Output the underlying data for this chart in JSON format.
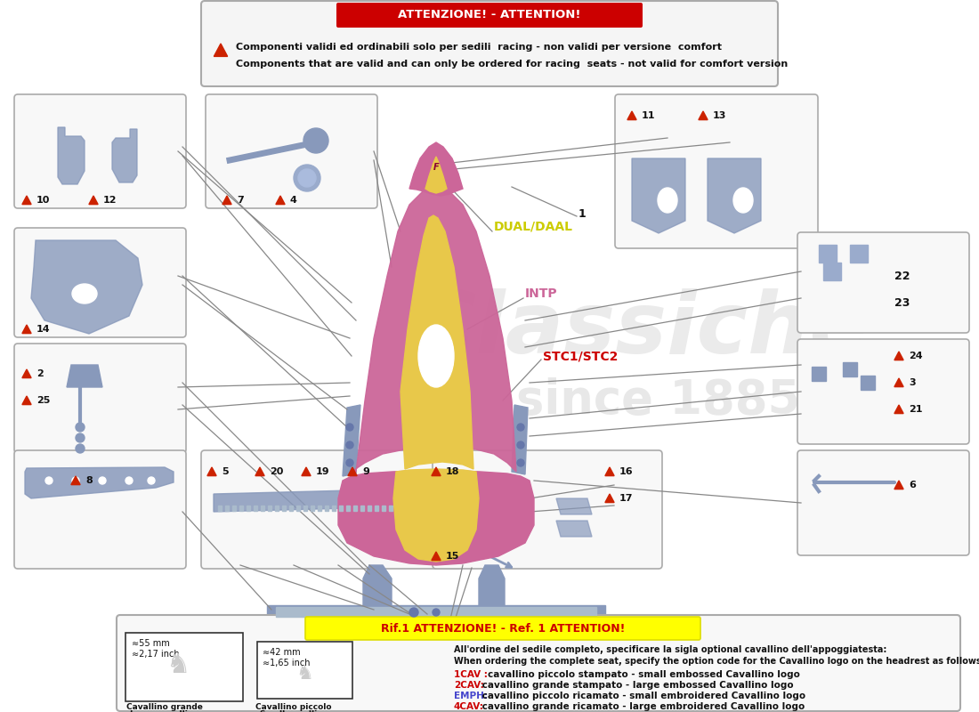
{
  "bg_color": "#ffffff",
  "fig_w": 11.0,
  "fig_h": 8.0,
  "dpi": 100,
  "attention": {
    "title": "ATTENZIONE! - ATTENTION!",
    "line1": "Componenti validi ed ordinabili solo per sedili  racing - non validi per versione  comfort",
    "line2": "Components that are valid and can only be ordered for racing  seats - not valid for comfort version"
  },
  "ref_attention": {
    "title": "Rif.1 ATTENZIONE! - Ref. 1 ATTENTION!",
    "line0": "All'ordine del sedile completo, specificare la sigla optional cavallino dell'appoggiatesta:",
    "line1": "When ordering the complete seat, specify the option code for the Cavallino logo on the headrest as follows:",
    "lines": [
      [
        "1CAV : ",
        "cavallino piccolo stampato - small embossed Cavallino logo"
      ],
      [
        "2CAV:",
        " cavallino grande stampato - large embossed Cavallino logo"
      ],
      [
        "EMPH:",
        " cavallino piccolo ricamato - small embroidered Cavallino logo"
      ],
      [
        "4CAV:",
        " cavallino grande ricamato - large embroidered Cavallino logo"
      ]
    ],
    "key_color": "#cc0000",
    "emph_color": "#4444cc"
  },
  "seat_pink": "#cc6699",
  "seat_yellow": "#e8c84a",
  "seat_metal": "#8899bb",
  "seat_metal_dark": "#6677aa",
  "label_dual": "DUAL/DAAL",
  "label_dual_color": "#cccc00",
  "label_intp": "INTP",
  "label_intp_color": "#cc6699",
  "label_stc": "STC1/STC2",
  "label_stc_color": "#cc0000",
  "watermark_color": "#dddddd",
  "part_num_color": "#111111",
  "tri_color": "#cc2200",
  "box_edge": "#aaaaaa",
  "box_face": "#f8f8f8",
  "line_color": "#888888"
}
